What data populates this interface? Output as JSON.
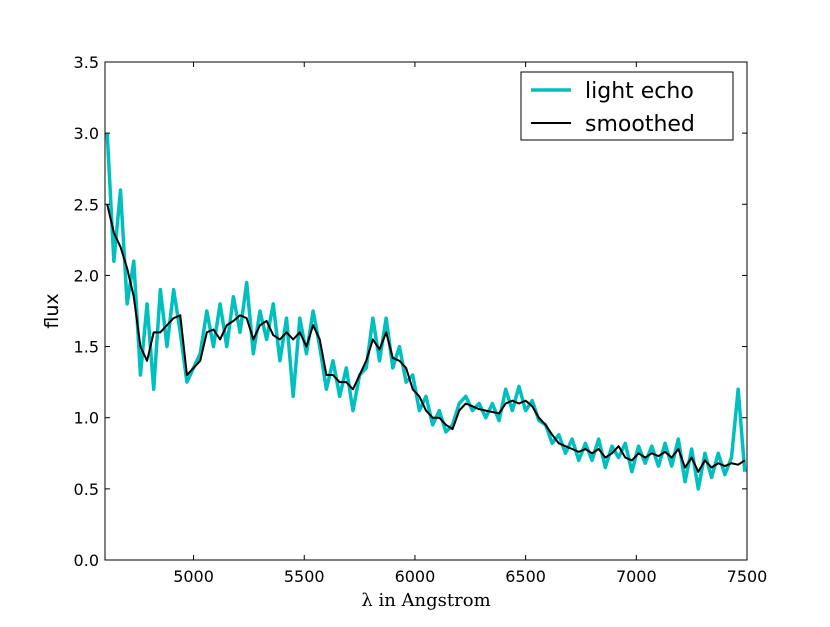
{
  "chart_data": {
    "type": "line",
    "x_label": "λ in Angstrom",
    "y_label": "flux",
    "xlim": [
      4600,
      7500
    ],
    "ylim": [
      0,
      3.5
    ],
    "xticks": [
      5000,
      5500,
      6000,
      6500,
      7000,
      7500
    ],
    "yticks": [
      {
        "value": 0,
        "label": "0.0"
      },
      0.5,
      {
        "value": 1,
        "label": "1.0"
      },
      1.5,
      {
        "value": 2,
        "label": "2.0"
      },
      2.5,
      {
        "value": 3,
        "label": "3.0"
      },
      3.5
    ],
    "legend": "upper right",
    "x": [
      4610,
      4640,
      4670,
      4700,
      4730,
      4760,
      4790,
      4820,
      4850,
      4880,
      4910,
      4940,
      4970,
      5000,
      5030,
      5060,
      5090,
      5120,
      5150,
      5180,
      5210,
      5240,
      5270,
      5300,
      5330,
      5360,
      5390,
      5420,
      5450,
      5480,
      5510,
      5540,
      5570,
      5600,
      5630,
      5660,
      5690,
      5720,
      5750,
      5780,
      5810,
      5840,
      5870,
      5900,
      5930,
      5960,
      5990,
      6020,
      6050,
      6080,
      6110,
      6140,
      6170,
      6200,
      6230,
      6260,
      6290,
      6320,
      6350,
      6380,
      6410,
      6440,
      6470,
      6500,
      6530,
      6560,
      6590,
      6620,
      6650,
      6680,
      6710,
      6740,
      6770,
      6800,
      6830,
      6860,
      6890,
      6920,
      6950,
      6980,
      7010,
      7040,
      7070,
      7100,
      7130,
      7160,
      7190,
      7220,
      7250,
      7280,
      7310,
      7340,
      7370,
      7400,
      7430,
      7460,
      7490
    ],
    "series": [
      {
        "name": "light echo",
        "color": "#00bfbf",
        "width": 3.5,
        "values": [
          3.0,
          2.1,
          2.6,
          1.8,
          2.1,
          1.3,
          1.8,
          1.2,
          1.9,
          1.5,
          1.9,
          1.6,
          1.25,
          1.35,
          1.45,
          1.75,
          1.5,
          1.8,
          1.5,
          1.85,
          1.6,
          1.95,
          1.45,
          1.75,
          1.55,
          1.8,
          1.4,
          1.7,
          1.15,
          1.7,
          1.45,
          1.75,
          1.5,
          1.2,
          1.4,
          1.15,
          1.35,
          1.05,
          1.3,
          1.35,
          1.7,
          1.4,
          1.7,
          1.35,
          1.5,
          1.25,
          1.3,
          1.05,
          1.15,
          0.95,
          1.05,
          0.9,
          0.95,
          1.1,
          1.15,
          1.05,
          1.1,
          1.0,
          1.1,
          0.98,
          1.2,
          1.05,
          1.22,
          1.05,
          1.12,
          0.98,
          0.95,
          0.82,
          0.88,
          0.75,
          0.85,
          0.7,
          0.82,
          0.7,
          0.85,
          0.65,
          0.8,
          0.72,
          0.82,
          0.62,
          0.8,
          0.68,
          0.8,
          0.66,
          0.82,
          0.66,
          0.85,
          0.55,
          0.78,
          0.5,
          0.75,
          0.58,
          0.75,
          0.6,
          0.72,
          1.2,
          0.62
        ]
      },
      {
        "name": "smoothed",
        "color": "#000000",
        "width": 2,
        "values": [
          2.5,
          2.3,
          2.2,
          2.05,
          1.85,
          1.5,
          1.4,
          1.6,
          1.6,
          1.65,
          1.7,
          1.72,
          1.3,
          1.35,
          1.4,
          1.6,
          1.62,
          1.55,
          1.65,
          1.68,
          1.72,
          1.7,
          1.55,
          1.65,
          1.68,
          1.58,
          1.55,
          1.6,
          1.55,
          1.6,
          1.5,
          1.65,
          1.55,
          1.3,
          1.3,
          1.25,
          1.25,
          1.2,
          1.3,
          1.4,
          1.55,
          1.48,
          1.6,
          1.42,
          1.4,
          1.35,
          1.2,
          1.15,
          1.05,
          1.0,
          1.0,
          0.95,
          0.92,
          1.05,
          1.1,
          1.08,
          1.06,
          1.05,
          1.04,
          1.03,
          1.1,
          1.12,
          1.1,
          1.12,
          1.08,
          1.0,
          0.95,
          0.88,
          0.82,
          0.8,
          0.78,
          0.76,
          0.78,
          0.75,
          0.78,
          0.72,
          0.75,
          0.8,
          0.72,
          0.7,
          0.75,
          0.72,
          0.75,
          0.73,
          0.76,
          0.72,
          0.78,
          0.65,
          0.72,
          0.62,
          0.7,
          0.65,
          0.68,
          0.66,
          0.68,
          0.67,
          0.7
        ]
      }
    ]
  }
}
